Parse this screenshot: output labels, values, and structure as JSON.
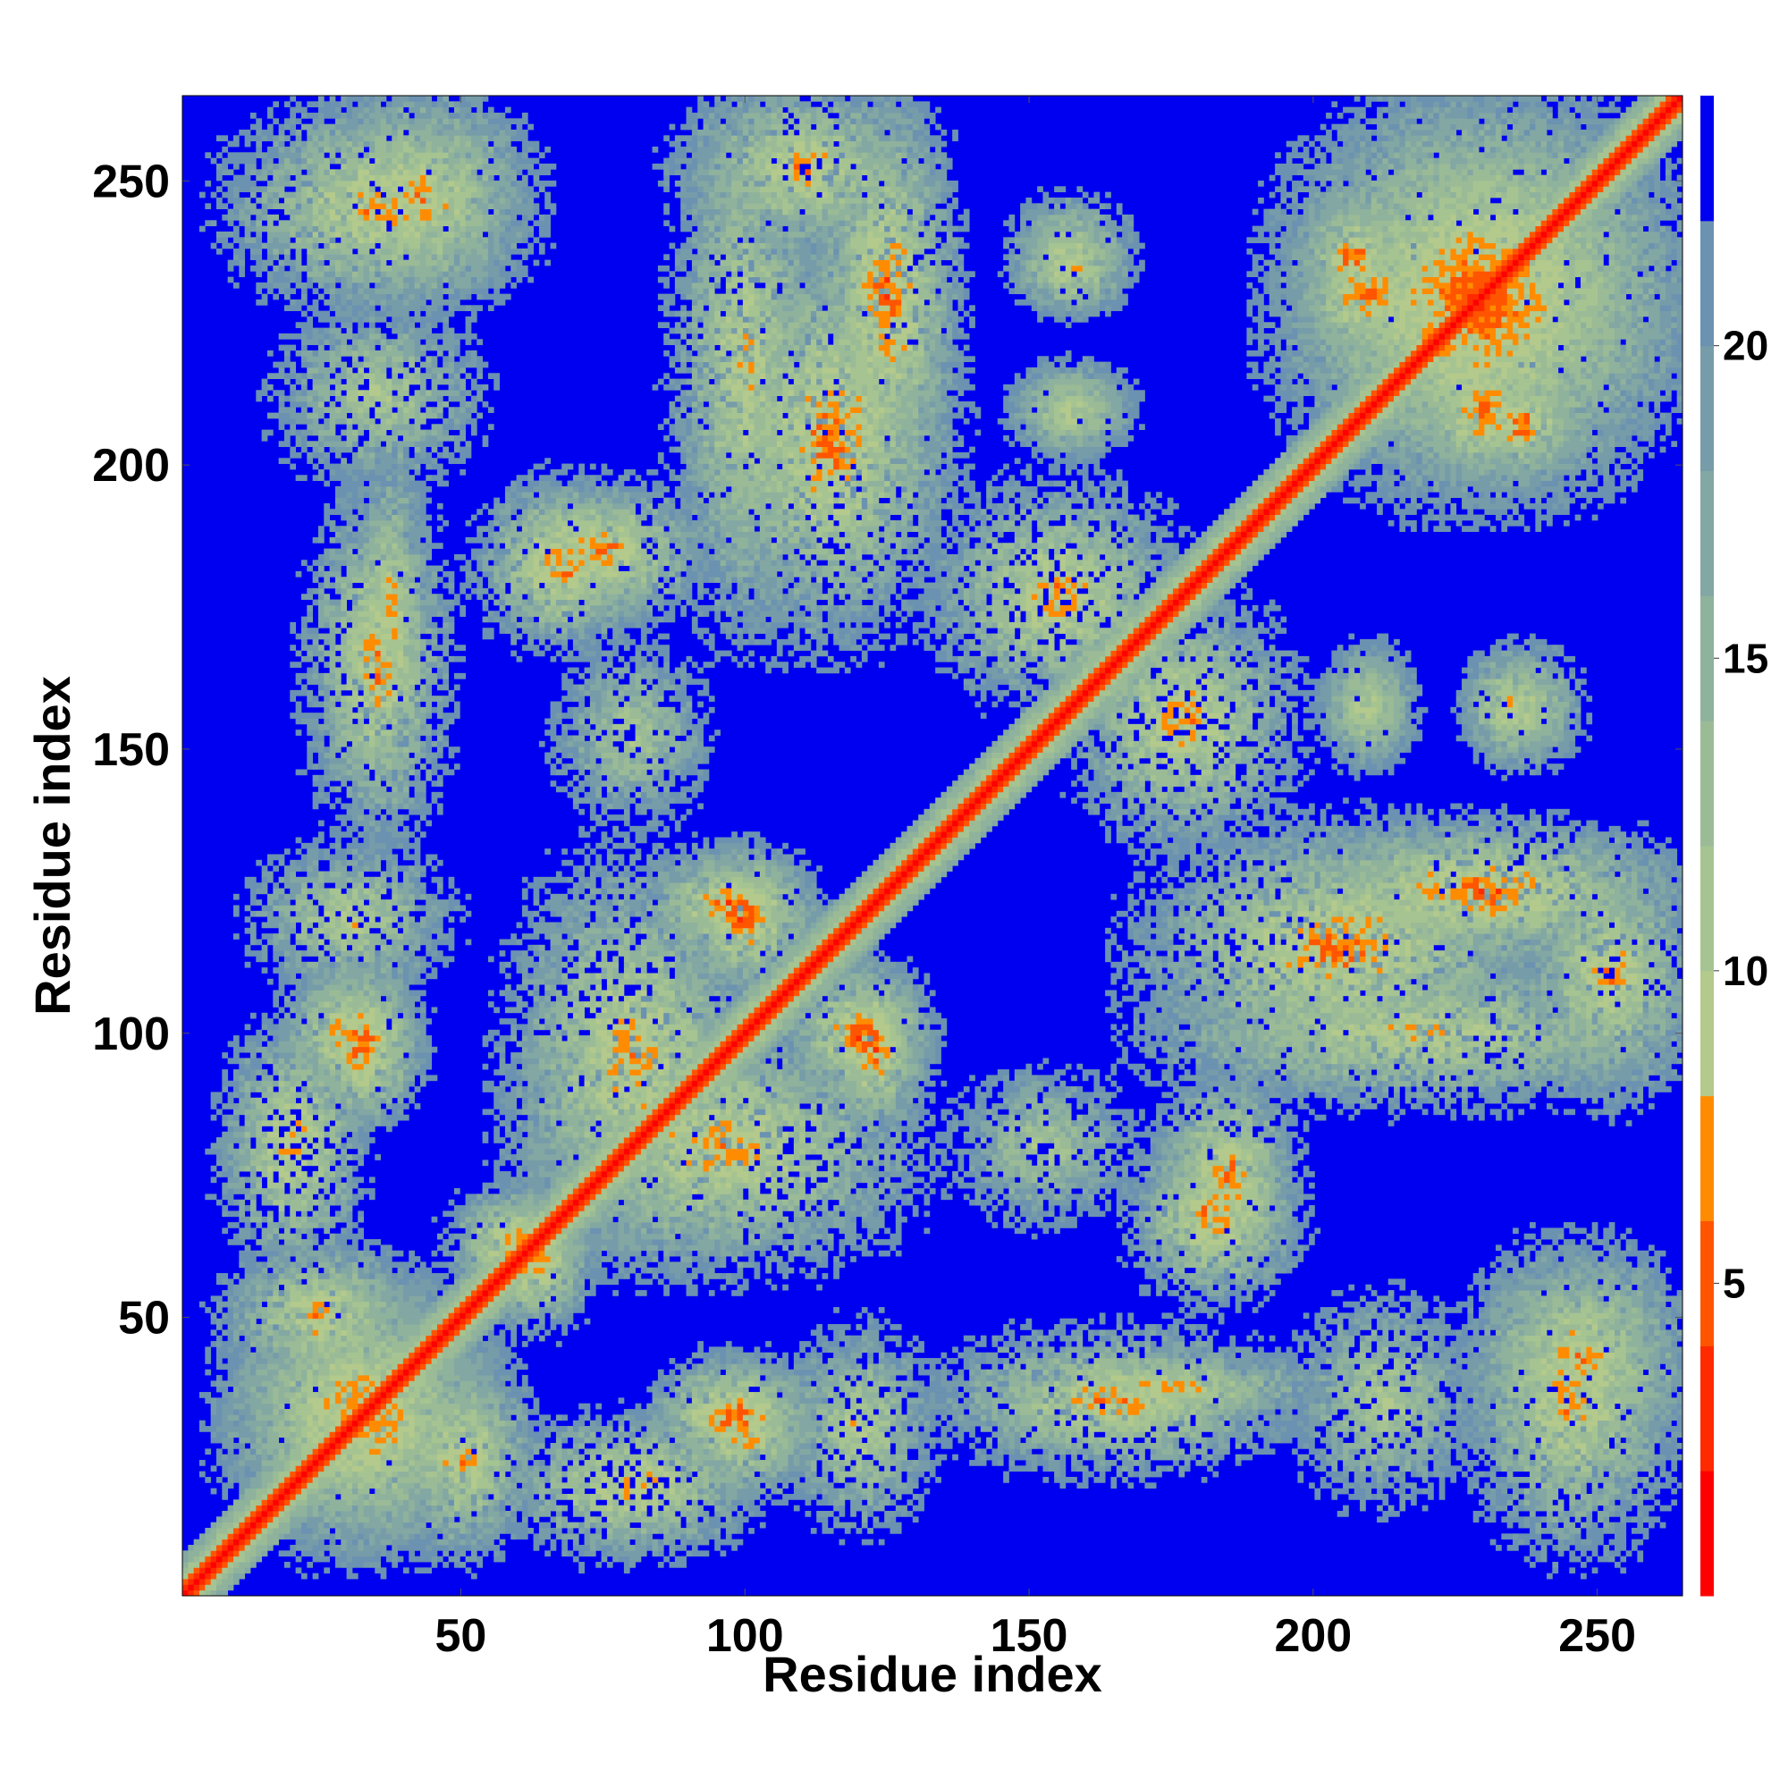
{
  "chart_data": {
    "type": "heatmap",
    "title": "",
    "xlabel": "Residue index",
    "ylabel": "Residue index",
    "n_residues": 265,
    "xlim": [
      1,
      265
    ],
    "ylim": [
      1,
      265
    ],
    "x_ticks": [
      50,
      100,
      150,
      200,
      250
    ],
    "x_tick_labels": [
      "50",
      "100",
      "150",
      "200",
      "250"
    ],
    "y_ticks": [
      50,
      100,
      150,
      200,
      250
    ],
    "y_tick_labels": [
      "50",
      "100",
      "150",
      "200",
      "250"
    ],
    "grid": false,
    "symmetric": true,
    "colorbar": {
      "range": [
        0,
        24
      ],
      "ticks": [
        5,
        10,
        15,
        20
      ],
      "tick_labels": [
        "5",
        "10",
        "15",
        "20"
      ],
      "bins": [
        {
          "from": 0,
          "to": 2,
          "color": "#ff0000"
        },
        {
          "from": 2,
          "to": 4,
          "color": "#ff2a00"
        },
        {
          "from": 4,
          "to": 6,
          "color": "#ff5500"
        },
        {
          "from": 6,
          "to": 8,
          "color": "#ff8c00"
        },
        {
          "from": 8,
          "to": 10,
          "color": "#b4c98c"
        },
        {
          "from": 10,
          "to": 12,
          "color": "#a6c491"
        },
        {
          "from": 12,
          "to": 14,
          "color": "#9bbb97"
        },
        {
          "from": 14,
          "to": 16,
          "color": "#8fb29d"
        },
        {
          "from": 16,
          "to": 18,
          "color": "#83a7a3"
        },
        {
          "from": 18,
          "to": 20,
          "color": "#779ca9"
        },
        {
          "from": 20,
          "to": 22,
          "color": "#6b92b0"
        },
        {
          "from": 22,
          "to": 24,
          "color": "#0000f0"
        }
      ]
    },
    "contact_regions": [
      {
        "x": [
          10,
          55
        ],
        "y": [
          10,
          55
        ],
        "min_distance": 6
      },
      {
        "x": [
          55,
          70
        ],
        "y": [
          50,
          70
        ],
        "min_distance": 5
      },
      {
        "x": [
          40,
          60
        ],
        "y": [
          10,
          40
        ],
        "min_distance": 7
      },
      {
        "x": [
          90,
          110
        ],
        "y": [
          20,
          40
        ],
        "min_distance": 6
      },
      {
        "x": [
          110,
          130
        ],
        "y": [
          15,
          45
        ],
        "min_distance": 9
      },
      {
        "x": [
          135,
          195
        ],
        "y": [
          25,
          45
        ],
        "min_distance": 7
      },
      {
        "x": [
          200,
          225
        ],
        "y": [
          20,
          50
        ],
        "min_distance": 10
      },
      {
        "x": [
          230,
          262
        ],
        "y": [
          10,
          60
        ],
        "min_distance": 7
      },
      {
        "x": [
          10,
          30
        ],
        "y": [
          60,
          100
        ],
        "min_distance": 7
      },
      {
        "x": [
          25,
          40
        ],
        "y": [
          85,
          110
        ],
        "min_distance": 5
      },
      {
        "x": [
          60,
          100
        ],
        "y": [
          60,
          130
        ],
        "min_distance": 7
      },
      {
        "x": [
          90,
          110
        ],
        "y": [
          110,
          130
        ],
        "min_distance": 5
      },
      {
        "x": [
          115,
          130
        ],
        "y": [
          85,
          110
        ],
        "min_distance": 5
      },
      {
        "x": [
          140,
          165
        ],
        "y": [
          70,
          90
        ],
        "min_distance": 11
      },
      {
        "x": [
          175,
          195
        ],
        "y": [
          60,
          90
        ],
        "min_distance": 6
      },
      {
        "x": [
          170,
          265
        ],
        "y": [
          90,
          110
        ],
        "min_distance": 8
      },
      {
        "x": [
          195,
          265
        ],
        "y": [
          115,
          135
        ],
        "min_distance": 5
      },
      {
        "x": [
          160,
          195
        ],
        "y": [
          135,
          175
        ],
        "min_distance": 7
      },
      {
        "x": [
          35,
          40
        ],
        "y": [
          150,
          200
        ],
        "min_distance": 7
      },
      {
        "x": [
          55,
          80
        ],
        "y": [
          170,
          195
        ],
        "min_distance": 6
      },
      {
        "x": [
          95,
          135
        ],
        "y": [
          170,
          240
        ],
        "min_distance": 6
      },
      {
        "x": [
          25,
          60
        ],
        "y": [
          230,
          265
        ],
        "min_distance": 7
      },
      {
        "x": [
          90,
          130
        ],
        "y": [
          240,
          265
        ],
        "min_distance": 7
      },
      {
        "x": [
          150,
          165
        ],
        "y": [
          230,
          240
        ],
        "min_distance": 7
      },
      {
        "x": [
          150,
          165
        ],
        "y": [
          205,
          215
        ],
        "min_distance": 9
      },
      {
        "x": [
          195,
          265
        ],
        "y": [
          195,
          265
        ],
        "min_distance": 5
      },
      {
        "x": [
          200,
          220
        ],
        "y": [
          220,
          240
        ],
        "min_distance": 5
      },
      {
        "x": [
          230,
          245
        ],
        "y": [
          200,
          215
        ],
        "min_distance": 5
      },
      {
        "x": [
          205,
          215
        ],
        "y": [
          150,
          165
        ],
        "min_distance": 9
      },
      {
        "x": [
          230,
          245
        ],
        "y": [
          150,
          165
        ],
        "min_distance": 9
      }
    ]
  }
}
